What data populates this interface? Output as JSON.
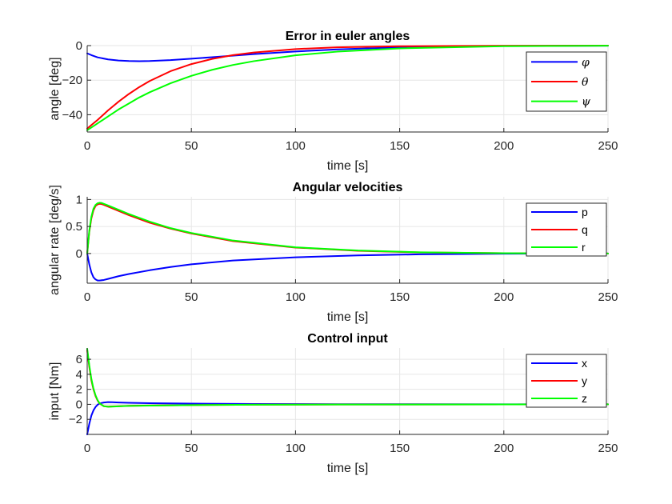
{
  "chart_data": [
    {
      "type": "line",
      "title": "Error in euler angles",
      "xlabel": "time [s]",
      "ylabel": "angle [deg]",
      "xlim": [
        0,
        250
      ],
      "ylim": [
        -50,
        0
      ],
      "xticks": [
        0,
        50,
        100,
        150,
        200,
        250
      ],
      "yticks": [
        -40,
        -20,
        0
      ],
      "grid": true,
      "legend_position": "top-right",
      "legend_italic": true,
      "series": [
        {
          "name": "φ",
          "color": "#0000ff",
          "x": [
            0,
            2,
            5,
            10,
            15,
            20,
            25,
            30,
            40,
            50,
            60,
            80,
            100,
            120,
            150,
            200,
            250
          ],
          "values": [
            -4.5,
            -5.5,
            -6.8,
            -8.0,
            -8.6,
            -8.9,
            -9.0,
            -8.9,
            -8.4,
            -7.6,
            -6.7,
            -4.9,
            -3.4,
            -2.2,
            -1.0,
            -0.25,
            -0.05
          ]
        },
        {
          "name": "θ",
          "color": "#ff0000",
          "x": [
            0,
            5,
            10,
            15,
            20,
            25,
            30,
            40,
            50,
            60,
            70,
            80,
            100,
            120,
            150,
            200,
            250
          ],
          "values": [
            -48,
            -43,
            -37.5,
            -32.5,
            -28,
            -24,
            -20.5,
            -14.8,
            -10.7,
            -7.7,
            -5.5,
            -4.0,
            -2.0,
            -1.0,
            -0.35,
            -0.05,
            0
          ]
        },
        {
          "name": "ψ",
          "color": "#00ff00",
          "x": [
            0,
            5,
            10,
            15,
            20,
            25,
            30,
            40,
            50,
            60,
            70,
            80,
            100,
            120,
            150,
            200,
            250
          ],
          "values": [
            -49,
            -45,
            -41,
            -37,
            -33.5,
            -30,
            -27,
            -21.8,
            -17.5,
            -14,
            -11.2,
            -9.0,
            -5.6,
            -3.5,
            -1.6,
            -0.35,
            -0.05
          ]
        }
      ]
    },
    {
      "type": "line",
      "title": "Angular velocities",
      "xlabel": "time [s]",
      "ylabel": "angular rate [deg/s]",
      "xlim": [
        0,
        250
      ],
      "ylim": [
        -0.55,
        1.05
      ],
      "xticks": [
        0,
        50,
        100,
        150,
        200,
        250
      ],
      "yticks": [
        0,
        0.5,
        1
      ],
      "ytick_labels": [
        "0",
        "0.5",
        "1"
      ],
      "grid": true,
      "legend_position": "top-right",
      "legend_italic": false,
      "series": [
        {
          "name": "p",
          "color": "#0000ff",
          "x": [
            0,
            1,
            2,
            3,
            4,
            5,
            6,
            8,
            10,
            15,
            20,
            30,
            40,
            50,
            70,
            100,
            130,
            160,
            200,
            250
          ],
          "values": [
            0,
            -0.2,
            -0.35,
            -0.44,
            -0.48,
            -0.5,
            -0.5,
            -0.49,
            -0.47,
            -0.42,
            -0.38,
            -0.31,
            -0.25,
            -0.2,
            -0.13,
            -0.07,
            -0.035,
            -0.015,
            -0.004,
            0
          ]
        },
        {
          "name": "q",
          "color": "#ff0000",
          "x": [
            0,
            1,
            2,
            3,
            4,
            5,
            6,
            7,
            8,
            10,
            15,
            20,
            30,
            40,
            50,
            70,
            100,
            130,
            160,
            200,
            250
          ],
          "values": [
            0,
            0.4,
            0.65,
            0.8,
            0.88,
            0.91,
            0.92,
            0.915,
            0.9,
            0.87,
            0.79,
            0.71,
            0.57,
            0.46,
            0.37,
            0.23,
            0.11,
            0.05,
            0.02,
            0.005,
            0
          ]
        },
        {
          "name": "r",
          "color": "#00ff00",
          "x": [
            0,
            1,
            2,
            3,
            4,
            5,
            6,
            7,
            8,
            10,
            15,
            20,
            30,
            40,
            50,
            70,
            100,
            130,
            160,
            200,
            250
          ],
          "values": [
            0,
            0.42,
            0.68,
            0.83,
            0.9,
            0.93,
            0.94,
            0.935,
            0.92,
            0.89,
            0.81,
            0.73,
            0.59,
            0.47,
            0.38,
            0.24,
            0.115,
            0.055,
            0.022,
            0.006,
            0
          ]
        }
      ]
    },
    {
      "type": "line",
      "title": "Control input",
      "xlabel": "time [s]",
      "ylabel": "input [Nm]",
      "xlim": [
        0,
        250
      ],
      "ylim": [
        -4,
        7.5
      ],
      "xticks": [
        0,
        50,
        100,
        150,
        200,
        250
      ],
      "yticks": [
        -2,
        0,
        2,
        4,
        6
      ],
      "grid": true,
      "legend_position": "top-right",
      "legend_italic": false,
      "series": [
        {
          "name": "x",
          "color": "#0000ff",
          "x": [
            0,
            1,
            2,
            3,
            4,
            5,
            6,
            8,
            10,
            12,
            15,
            20,
            30,
            50,
            80,
            120,
            250
          ],
          "values": [
            -4,
            -2.6,
            -1.5,
            -0.8,
            -0.35,
            -0.05,
            0.12,
            0.25,
            0.3,
            0.28,
            0.24,
            0.2,
            0.15,
            0.1,
            0.05,
            0.02,
            0
          ]
        },
        {
          "name": "y",
          "color": "#ff0000",
          "x": [
            0,
            1,
            2,
            3,
            4,
            5,
            6,
            8,
            10,
            12,
            15,
            20,
            30,
            50,
            80,
            120,
            250
          ],
          "values": [
            7.2,
            5.0,
            3.2,
            2.0,
            1.1,
            0.5,
            0.1,
            -0.25,
            -0.3,
            -0.28,
            -0.24,
            -0.2,
            -0.15,
            -0.1,
            -0.05,
            -0.02,
            0
          ]
        },
        {
          "name": "z",
          "color": "#00ff00",
          "x": [
            0,
            1,
            2,
            3,
            4,
            5,
            6,
            8,
            10,
            12,
            15,
            20,
            30,
            50,
            80,
            120,
            250
          ],
          "values": [
            7.4,
            5.2,
            3.4,
            2.1,
            1.2,
            0.55,
            0.12,
            -0.25,
            -0.32,
            -0.3,
            -0.26,
            -0.21,
            -0.16,
            -0.1,
            -0.05,
            -0.02,
            0
          ]
        }
      ]
    }
  ]
}
